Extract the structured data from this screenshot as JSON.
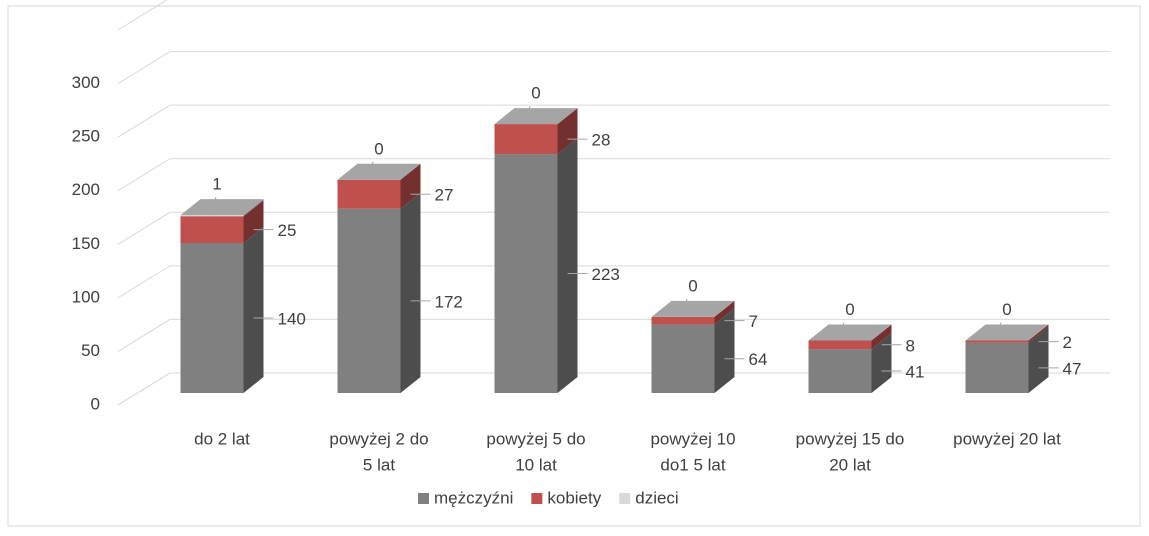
{
  "chart_data": {
    "type": "bar3d_stacked",
    "categories": [
      [
        "do 2 lat"
      ],
      [
        "powyżej 2 do",
        "5 lat"
      ],
      [
        "powyżej 5 do",
        "10 lat"
      ],
      [
        "powyżej 10",
        "do1 5 lat"
      ],
      [
        "powyżej 15 do",
        "20 lat"
      ],
      [
        "powyżej 20 lat"
      ]
    ],
    "series": [
      {
        "name": "mężczyźni",
        "color": "#808080",
        "values": [
          140,
          172,
          223,
          64,
          41,
          47
        ]
      },
      {
        "name": "kobiety",
        "color": "#c0504d",
        "values": [
          25,
          27,
          28,
          7,
          8,
          2
        ]
      },
      {
        "name": "dzieci",
        "color": "#d9d9d9",
        "values": [
          1,
          0,
          0,
          0,
          0,
          0
        ]
      }
    ],
    "ylim": [
      0,
      350
    ],
    "yticks": [
      0,
      50,
      100,
      150,
      200,
      250,
      300
    ],
    "grid": true,
    "legend": "bottom"
  }
}
